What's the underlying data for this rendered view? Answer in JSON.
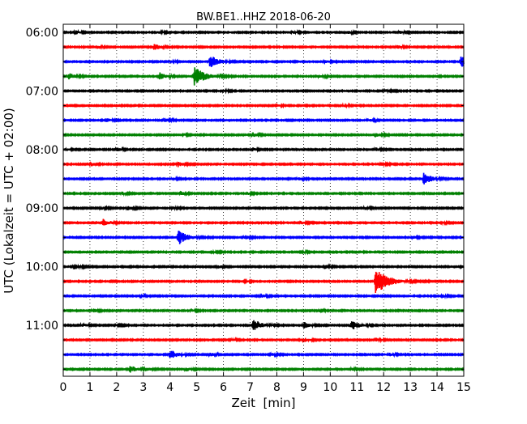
{
  "chart_data": {
    "type": "line",
    "title": "BW.BE1..HHZ 2018-06-20",
    "xlabel": "Zeit  [min]",
    "ylabel": "UTC (Lokalzeit = UTC + 02:00)",
    "xlim": [
      0,
      15
    ],
    "x_ticks": [
      0,
      1,
      2,
      3,
      4,
      5,
      6,
      7,
      8,
      9,
      10,
      11,
      12,
      13,
      14,
      15
    ],
    "x_tick_labels": [
      "0",
      "1",
      "2",
      "3",
      "4",
      "5",
      "6",
      "7",
      "8",
      "9",
      "10",
      "11",
      "12",
      "13",
      "14",
      "15"
    ],
    "y_tick_labels": [
      "06:00",
      "07:00",
      "08:00",
      "09:00",
      "10:00",
      "11:00"
    ],
    "trace_interval_min": 15,
    "grid": "vertical-dotted",
    "colors": [
      "#000000",
      "#ff0000",
      "#0000ff",
      "#008000"
    ],
    "series": [
      {
        "start": "06:00",
        "events": [
          {
            "t": 0.45,
            "amp": 0.35
          },
          {
            "t": 3.5,
            "amp": 0.3
          },
          {
            "t": 8.6,
            "amp": 0.25
          },
          {
            "t": 10.6,
            "amp": 0.3
          },
          {
            "t": 12.6,
            "amp": 0.25
          }
        ]
      },
      {
        "start": "06:15",
        "events": [
          {
            "t": 1.3,
            "amp": 0.25
          },
          {
            "t": 3.4,
            "amp": 0.6
          },
          {
            "t": 12.5,
            "amp": 0.3
          }
        ]
      },
      {
        "start": "06:30",
        "events": [
          {
            "t": 5.5,
            "amp": 1.2
          },
          {
            "t": 14.9,
            "amp": 1.0
          },
          {
            "t": 9.8,
            "amp": 0.25
          },
          {
            "t": 4.0,
            "amp": 0.25
          }
        ]
      },
      {
        "start": "06:45",
        "events": [
          {
            "t": 0.2,
            "amp": 0.6
          },
          {
            "t": 3.6,
            "amp": 0.7
          },
          {
            "t": 4.9,
            "amp": 1.8
          },
          {
            "t": 9.6,
            "amp": 0.3
          }
        ]
      },
      {
        "start": "07:00",
        "events": [
          {
            "t": 12.0,
            "amp": 0.35
          },
          {
            "t": 6.0,
            "amp": 0.2
          }
        ]
      },
      {
        "start": "07:15",
        "events": [
          {
            "t": 8.0,
            "amp": 0.2
          },
          {
            "t": 10.5,
            "amp": 0.2
          }
        ]
      },
      {
        "start": "07:30",
        "events": [
          {
            "t": 1.6,
            "amp": 0.35
          },
          {
            "t": 3.8,
            "amp": 0.4
          },
          {
            "t": 11.4,
            "amp": 0.35
          }
        ]
      },
      {
        "start": "07:45",
        "events": [
          {
            "t": 7.1,
            "amp": 0.4
          },
          {
            "t": 11.7,
            "amp": 0.4
          },
          {
            "t": 4.5,
            "amp": 0.2
          }
        ]
      },
      {
        "start": "08:00",
        "events": [
          {
            "t": 0.15,
            "amp": 0.25
          },
          {
            "t": 2.0,
            "amp": 0.35
          },
          {
            "t": 7.1,
            "amp": 0.3
          },
          {
            "t": 11.7,
            "amp": 0.3
          }
        ]
      },
      {
        "start": "08:15",
        "events": [
          {
            "t": 1.05,
            "amp": 0.3
          },
          {
            "t": 4.3,
            "amp": 0.45
          },
          {
            "t": 11.9,
            "amp": 0.3
          }
        ]
      },
      {
        "start": "08:30",
        "events": [
          {
            "t": 13.5,
            "amp": 1.1
          },
          {
            "t": 8.8,
            "amp": 0.25
          },
          {
            "t": 4.1,
            "amp": 0.25
          }
        ]
      },
      {
        "start": "08:45",
        "events": [
          {
            "t": 2.2,
            "amp": 0.25
          },
          {
            "t": 4.4,
            "amp": 0.3
          },
          {
            "t": 6.9,
            "amp": 0.25
          }
        ]
      },
      {
        "start": "09:00",
        "events": [
          {
            "t": 1.4,
            "amp": 0.3
          },
          {
            "t": 2.4,
            "amp": 0.4
          },
          {
            "t": 4.1,
            "amp": 0.25
          },
          {
            "t": 11.3,
            "amp": 0.3
          }
        ]
      },
      {
        "start": "09:15",
        "events": [
          {
            "t": 1.5,
            "amp": 0.7
          },
          {
            "t": 8.9,
            "amp": 0.3
          },
          {
            "t": 14.2,
            "amp": 0.2
          }
        ]
      },
      {
        "start": "09:30",
        "events": [
          {
            "t": 4.3,
            "amp": 1.4
          },
          {
            "t": 6.8,
            "amp": 0.35
          },
          {
            "t": 13.1,
            "amp": 0.25
          }
        ]
      },
      {
        "start": "09:45",
        "events": [
          {
            "t": 5.6,
            "amp": 0.2
          },
          {
            "t": 9.0,
            "amp": 0.2
          }
        ]
      },
      {
        "start": "10:00",
        "events": [
          {
            "t": 0.4,
            "amp": 0.5
          },
          {
            "t": 5.8,
            "amp": 0.3
          },
          {
            "t": 9.8,
            "amp": 0.3
          },
          {
            "t": 14.9,
            "amp": 0.3
          }
        ]
      },
      {
        "start": "10:15",
        "events": [
          {
            "t": 11.7,
            "amp": 2.4
          },
          {
            "t": 6.8,
            "amp": 0.2
          }
        ]
      },
      {
        "start": "10:30",
        "events": [
          {
            "t": 7.4,
            "amp": 0.35
          },
          {
            "t": 14.2,
            "amp": 0.25
          },
          {
            "t": 2.9,
            "amp": 0.2
          }
        ]
      },
      {
        "start": "10:45",
        "events": [
          {
            "t": 1.1,
            "amp": 0.35
          },
          {
            "t": 4.8,
            "amp": 0.25
          },
          {
            "t": 9.6,
            "amp": 0.2
          }
        ]
      },
      {
        "start": "11:00",
        "events": [
          {
            "t": 0.7,
            "amp": 0.35
          },
          {
            "t": 7.1,
            "amp": 1.2
          },
          {
            "t": 9.0,
            "amp": 0.6
          },
          {
            "t": 10.8,
            "amp": 0.9
          },
          {
            "t": 2.0,
            "amp": 0.2
          }
        ]
      },
      {
        "start": "11:15",
        "events": [
          {
            "t": 9.0,
            "amp": 0.4
          },
          {
            "t": 11.7,
            "amp": 0.35
          },
          {
            "t": 6.3,
            "amp": 0.2
          }
        ]
      },
      {
        "start": "11:30",
        "events": [
          {
            "t": 4.0,
            "amp": 0.9
          },
          {
            "t": 5.5,
            "amp": 0.35
          },
          {
            "t": 7.8,
            "amp": 0.25
          },
          {
            "t": 12.2,
            "amp": 0.3
          }
        ]
      },
      {
        "start": "11:45",
        "events": [
          {
            "t": 2.5,
            "amp": 0.7
          },
          {
            "t": 4.6,
            "amp": 0.4
          },
          {
            "t": 10.8,
            "amp": 0.25
          },
          {
            "t": 3.1,
            "amp": 0.3
          }
        ]
      }
    ]
  }
}
